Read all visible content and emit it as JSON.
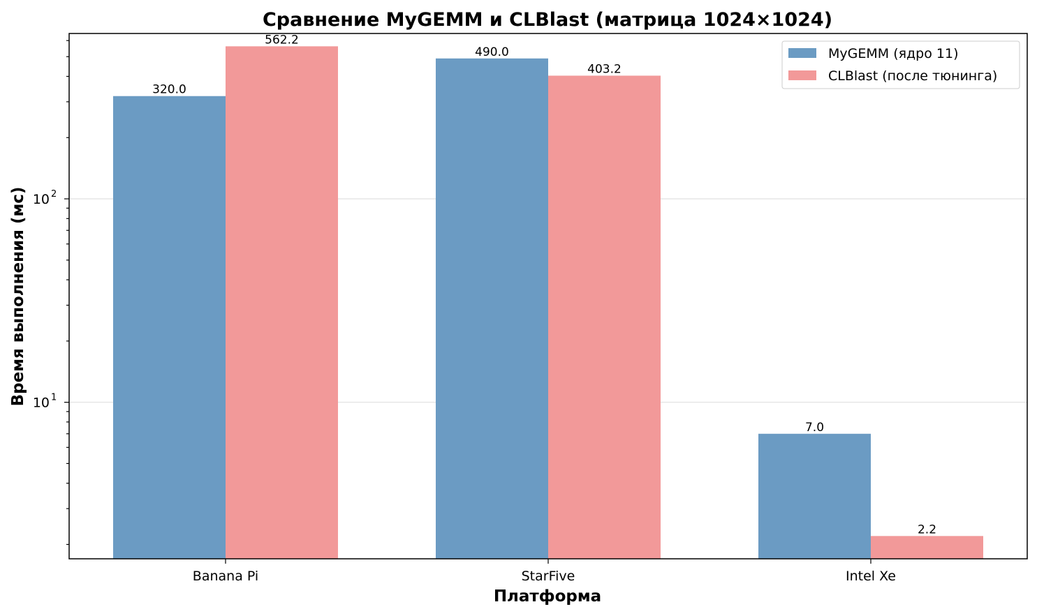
{
  "chart_data": {
    "type": "bar",
    "title": "Сравнение MyGEMM и CLBlast (матрица 1024×1024)",
    "xlabel": "Платформа",
    "ylabel": "Время выполнения (мс)",
    "yscale": "log",
    "ylim": [
      1.7,
      650
    ],
    "categories": [
      "Banana Pi",
      "StarFive",
      "Intel Xe"
    ],
    "series": [
      {
        "name": "MyGEMM (ядро 11)",
        "values": [
          320.0,
          490.0,
          7.0
        ],
        "labels": [
          "320.0",
          "490.0",
          "7.0"
        ],
        "color": "#6b9bc3"
      },
      {
        "name": "CLBlast (после тюнинга)",
        "values": [
          562.2,
          403.2,
          2.2
        ],
        "labels": [
          "562.2",
          "403.2",
          "2.2"
        ],
        "color": "#f29999"
      }
    ],
    "y_major_ticks": [
      10,
      100
    ],
    "y_major_tick_labels": [
      "10",
      "10"
    ],
    "y_major_tick_exponents": [
      "1",
      "2"
    ],
    "grid": "horizontal major",
    "legend": "top-right"
  }
}
